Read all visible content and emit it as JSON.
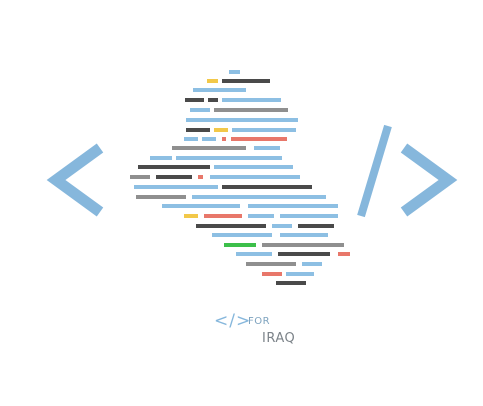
{
  "logo": {
    "icon": "code-brackets-icon",
    "map_icon": "iraq-map-code-lines-icon",
    "colors": {
      "bracket_blue": "#86b7dc",
      "line_blue": "#8dbfe3",
      "line_dark": "#4a4a4a",
      "line_gray": "#8f8f8f",
      "line_red": "#e8776a",
      "line_yellow": "#f2c849",
      "line_green": "#3cbf4a"
    }
  },
  "wordmark": {
    "code_symbol": "</>",
    "for_text": "FOR",
    "name_text": "IRAQ"
  }
}
